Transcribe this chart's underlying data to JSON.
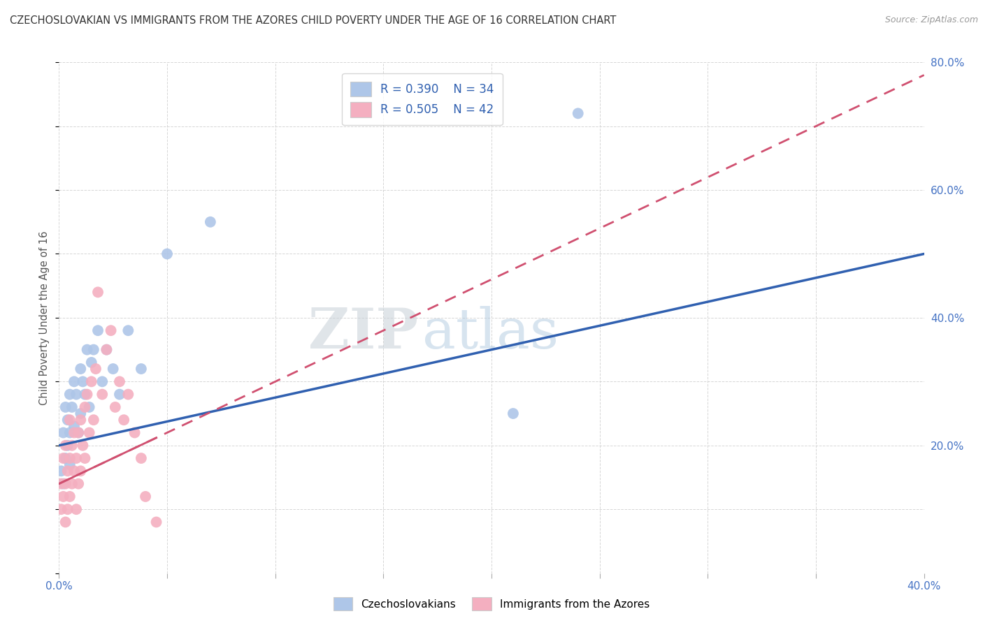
{
  "title": "CZECHOSLOVAKIAN VS IMMIGRANTS FROM THE AZORES CHILD POVERTY UNDER THE AGE OF 16 CORRELATION CHART",
  "source": "Source: ZipAtlas.com",
  "ylabel": "Child Poverty Under the Age of 16",
  "xlim": [
    0.0,
    0.4
  ],
  "ylim": [
    0.0,
    0.8
  ],
  "xticks": [
    0.0,
    0.05,
    0.1,
    0.15,
    0.2,
    0.25,
    0.3,
    0.35,
    0.4
  ],
  "yticks": [
    0.0,
    0.1,
    0.2,
    0.3,
    0.4,
    0.5,
    0.6,
    0.7,
    0.8
  ],
  "blue_color": "#aec6e8",
  "pink_color": "#f4afc0",
  "blue_line_color": "#3060b0",
  "pink_line_color": "#d05070",
  "legend_R_blue": "R = 0.390",
  "legend_N_blue": "N = 34",
  "legend_R_pink": "R = 0.505",
  "legend_N_pink": "N = 42",
  "watermark_zip": "ZIP",
  "watermark_atlas": "atlas",
  "blue_scatter_x": [
    0.001,
    0.002,
    0.002,
    0.003,
    0.003,
    0.004,
    0.004,
    0.005,
    0.005,
    0.005,
    0.006,
    0.007,
    0.007,
    0.008,
    0.009,
    0.01,
    0.01,
    0.011,
    0.012,
    0.013,
    0.014,
    0.015,
    0.016,
    0.018,
    0.02,
    0.022,
    0.025,
    0.028,
    0.032,
    0.038,
    0.05,
    0.07,
    0.21,
    0.24
  ],
  "blue_scatter_y": [
    0.16,
    0.22,
    0.14,
    0.26,
    0.18,
    0.2,
    0.24,
    0.28,
    0.17,
    0.22,
    0.26,
    0.3,
    0.23,
    0.28,
    0.22,
    0.32,
    0.25,
    0.3,
    0.28,
    0.35,
    0.26,
    0.33,
    0.35,
    0.38,
    0.3,
    0.35,
    0.32,
    0.28,
    0.38,
    0.32,
    0.5,
    0.55,
    0.25,
    0.72
  ],
  "pink_scatter_x": [
    0.001,
    0.001,
    0.002,
    0.002,
    0.003,
    0.003,
    0.003,
    0.004,
    0.004,
    0.005,
    0.005,
    0.005,
    0.006,
    0.006,
    0.007,
    0.007,
    0.008,
    0.008,
    0.009,
    0.009,
    0.01,
    0.01,
    0.011,
    0.012,
    0.012,
    0.013,
    0.014,
    0.015,
    0.016,
    0.017,
    0.018,
    0.02,
    0.022,
    0.024,
    0.026,
    0.028,
    0.03,
    0.032,
    0.035,
    0.038,
    0.04,
    0.045
  ],
  "pink_scatter_y": [
    0.14,
    0.1,
    0.12,
    0.18,
    0.08,
    0.14,
    0.2,
    0.1,
    0.16,
    0.12,
    0.18,
    0.24,
    0.14,
    0.2,
    0.16,
    0.22,
    0.1,
    0.18,
    0.14,
    0.22,
    0.16,
    0.24,
    0.2,
    0.26,
    0.18,
    0.28,
    0.22,
    0.3,
    0.24,
    0.32,
    0.44,
    0.28,
    0.35,
    0.38,
    0.26,
    0.3,
    0.24,
    0.28,
    0.22,
    0.18,
    0.12,
    0.08
  ],
  "blue_line_x": [
    0.0,
    0.4
  ],
  "blue_line_y": [
    0.2,
    0.5
  ],
  "pink_line_x": [
    0.0,
    0.4
  ],
  "pink_line_y": [
    0.14,
    0.78
  ],
  "grid_color": "#cccccc",
  "bg_color": "#ffffff",
  "title_color": "#333333",
  "axis_label_color": "#4472c4"
}
